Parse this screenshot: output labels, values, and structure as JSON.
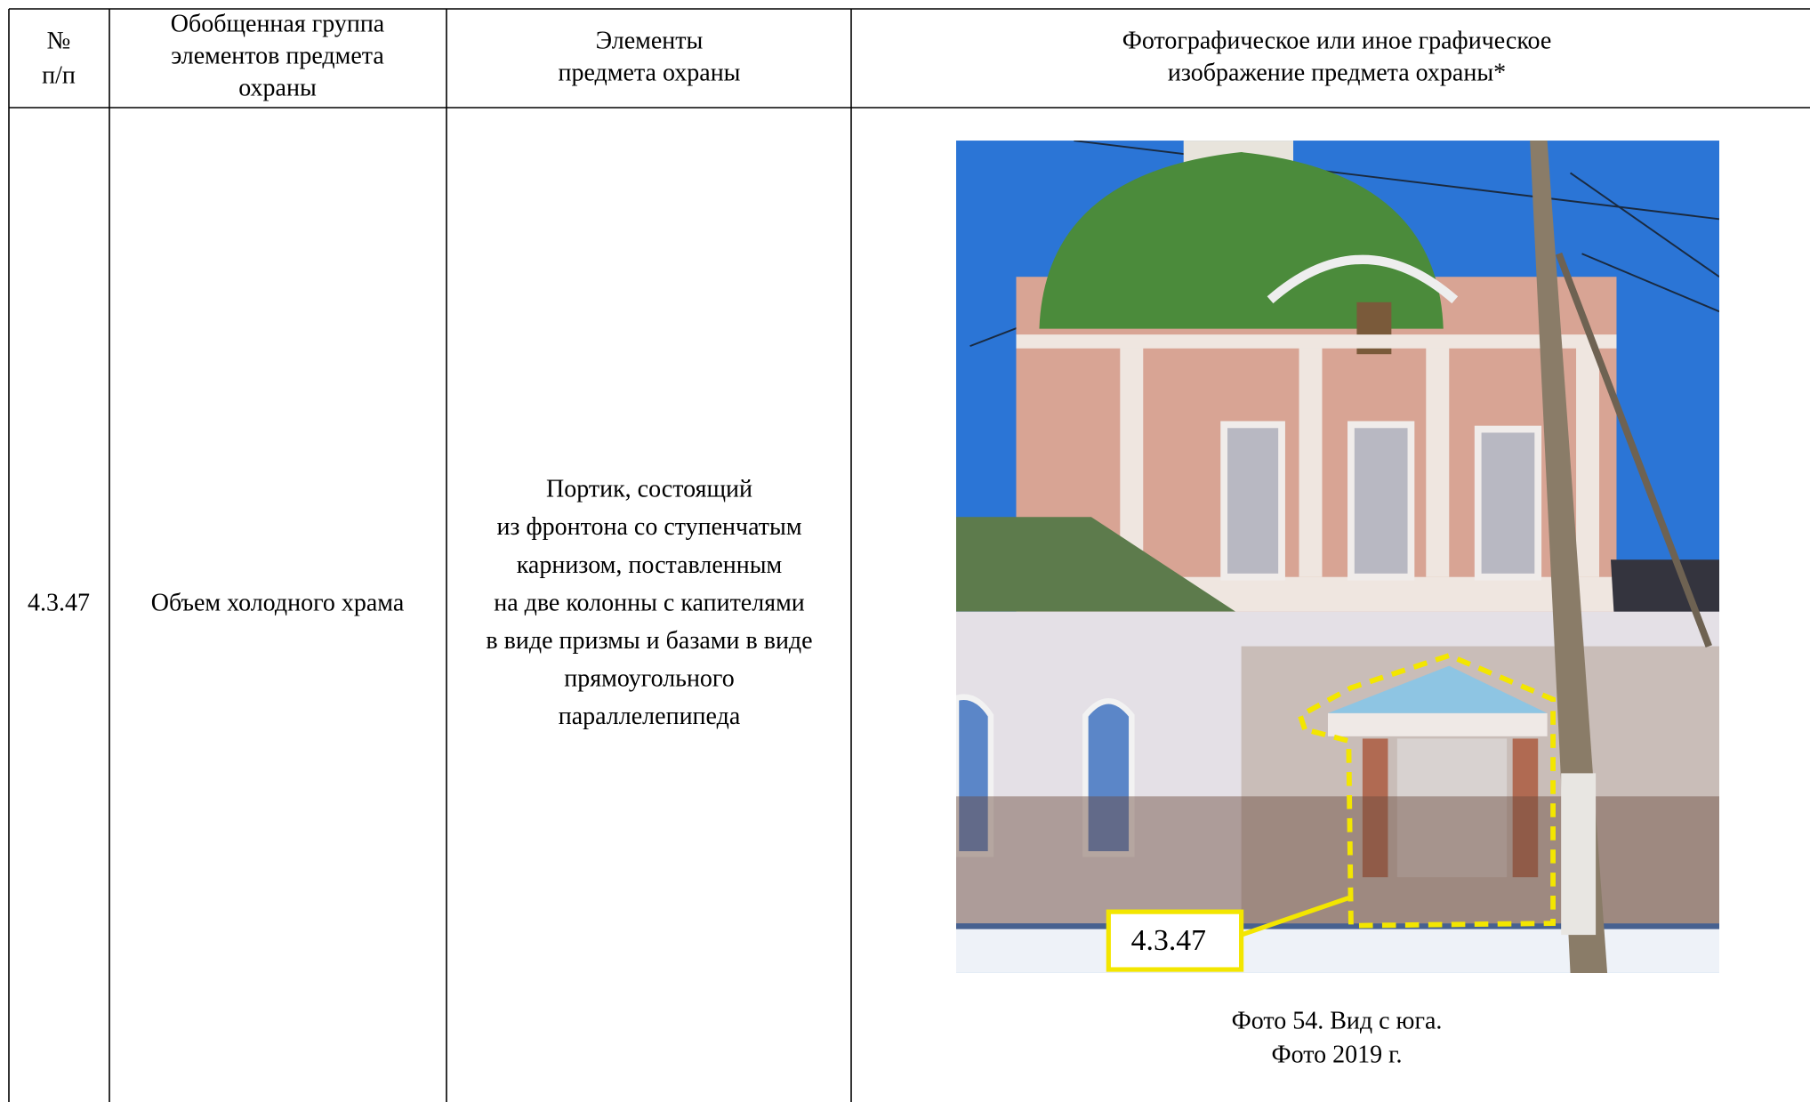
{
  "table": {
    "headers": [
      [
        "№",
        "п/п"
      ],
      [
        "Обобщенная группа",
        "элементов предмета",
        "охраны"
      ],
      [
        "Элементы",
        "предмета охраны"
      ],
      [
        "Фотографическое или иное графическое",
        "изображение предмета охраны*"
      ]
    ],
    "rows": [
      {
        "number": "4.3.47",
        "group": "Объем холодного храма",
        "elements": [
          "Портик, состоящий",
          "из фронтона со ступенчатым",
          "карнизом, поставленным",
          "на две колонны с капителями",
          "в виде призмы и базами в виде",
          "прямоугольного",
          "параллелепипеда"
        ],
        "photo": {
          "label": "4.3.47",
          "caption": [
            "Фото 54. Вид с юга.",
            "Фото 2019 г."
          ]
        }
      }
    ]
  }
}
